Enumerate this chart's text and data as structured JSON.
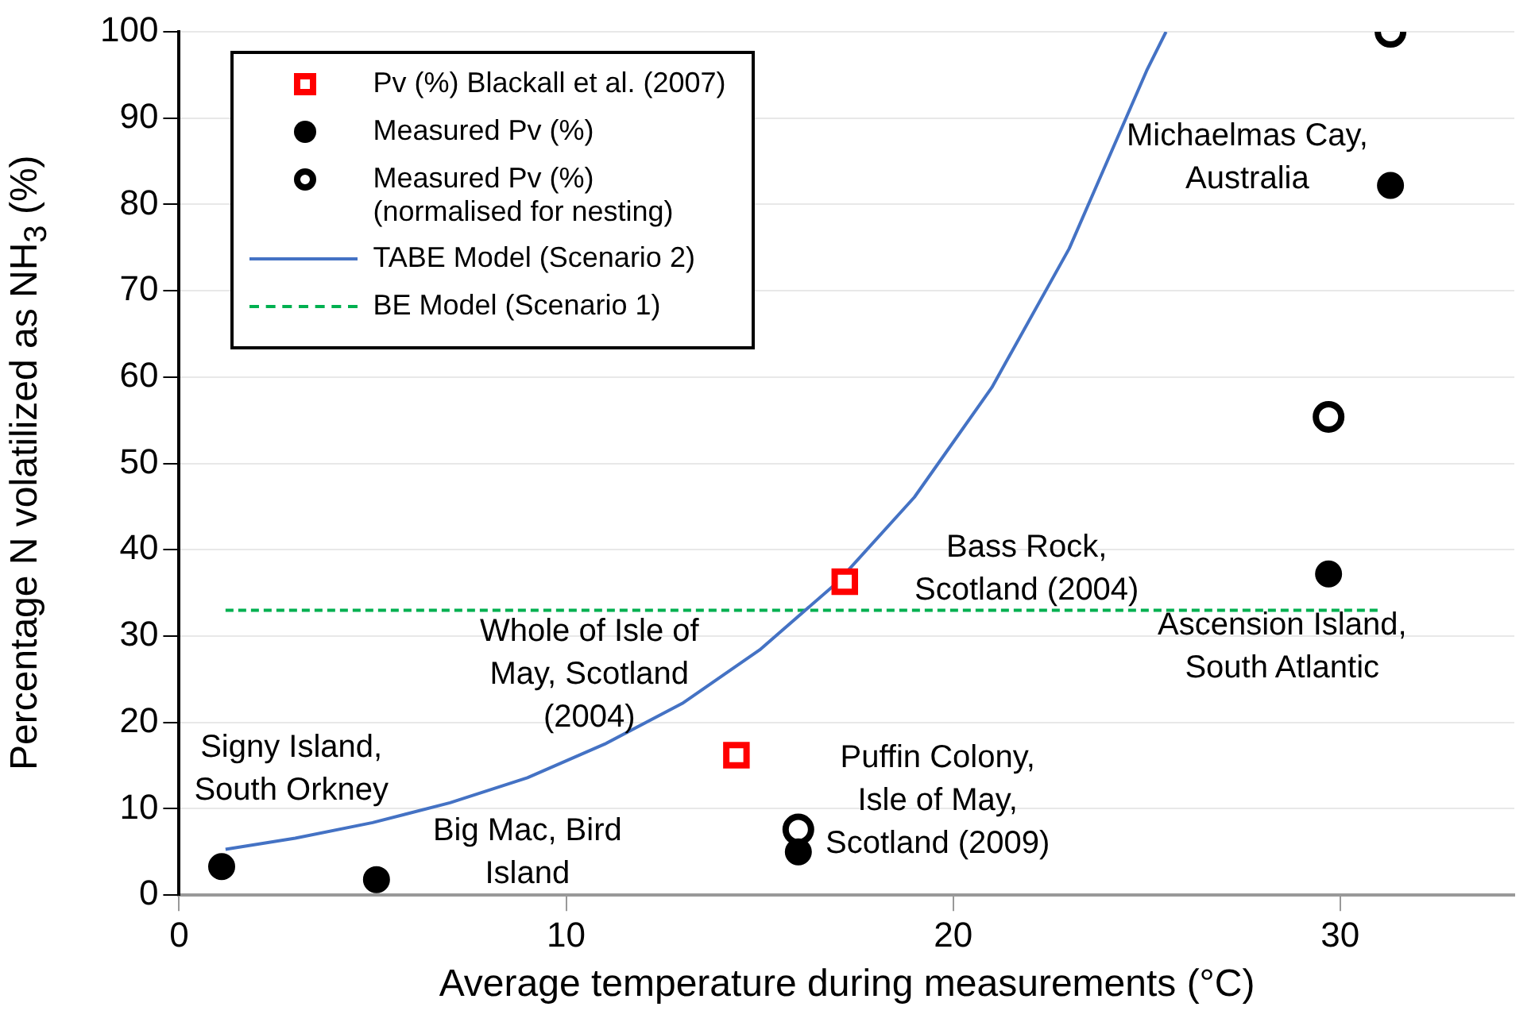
{
  "chart_data": {
    "type": "scatter",
    "xlabel": "Average  temperature during measurements (°C)",
    "ylabel": "Percentage N volatilized as NH$_{3}$ (%)",
    "xlim": [
      0,
      34.5
    ],
    "xticks": [
      0,
      10,
      20,
      30
    ],
    "ylim": [
      0,
      100
    ],
    "yticks": [
      0,
      10,
      20,
      30,
      40,
      50,
      60,
      70,
      80,
      90,
      100
    ],
    "grid": "y",
    "legend": "top left",
    "series": [
      {
        "name": "Pv (%) Blackall et al. (2007)",
        "marker": "square",
        "color": "#ff0000",
        "x": [
          14.4,
          17.2
        ],
        "values": [
          16.2,
          36.3
        ]
      },
      {
        "name": "Measured Pv (%)",
        "marker": "circle",
        "color": "#000000",
        "x": [
          1.1,
          5.1,
          16,
          29.7,
          31.3
        ],
        "values": [
          3.3,
          1.8,
          5,
          37.2,
          82.2
        ]
      },
      {
        "name": "Measured Pv (%) (normalised for nesting)",
        "marker": "circle",
        "color": "#000000",
        "x": [
          16,
          29.7,
          31.3
        ],
        "values": [
          7.6,
          55.4,
          100
        ]
      },
      {
        "name": "TABE Model (Scenario 2)",
        "type": "line",
        "marker": "none",
        "line_style": "solid",
        "color": "#4472c4",
        "x": [
          1.2,
          3,
          5,
          7,
          9,
          11,
          13,
          15,
          17,
          19,
          21,
          23,
          25,
          25.5
        ],
        "values": [
          5.3,
          6.6,
          8.4,
          10.7,
          13.6,
          17.5,
          22.2,
          28.4,
          36.2,
          46.1,
          58.8,
          74.9,
          95.5,
          100
        ]
      },
      {
        "name": "BE Model (Scenario 1)",
        "type": "line",
        "marker": "none",
        "line_style": "dashed",
        "color": "#00b050",
        "x": [
          1.2,
          31
        ],
        "values": [
          33,
          33
        ]
      }
    ],
    "annotations": [
      "Signy Island,\nSouth Orkney",
      "Big Mac, Bird\nIsland",
      "Whole of Isle of\nMay, Scotland\n(2004)",
      "Puffin Colony,\nIsle of May,\nScotland (2009)",
      "Bass Rock,\nScotland (2004)",
      "Ascension Island,\nSouth Atlantic",
      "Michaelmas Cay,\nAustralia"
    ]
  }
}
